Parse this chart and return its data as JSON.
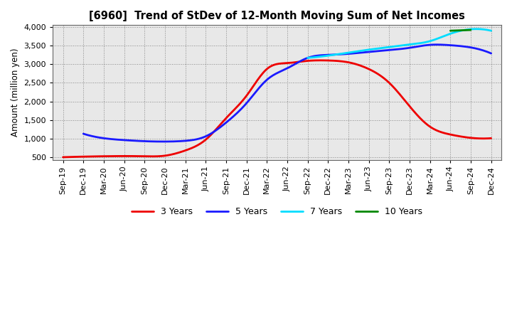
{
  "title": "[6960]  Trend of StDev of 12-Month Moving Sum of Net Incomes",
  "ylabel": "Amount (million yen)",
  "background_color": "#ffffff",
  "plot_bg_color": "#e8e8e8",
  "grid_color": "#aaaaaa",
  "ylim": [
    430,
    4050
  ],
  "yticks": [
    500,
    1000,
    1500,
    2000,
    2500,
    3000,
    3500,
    4000
  ],
  "lines": {
    "3 Years": {
      "color": "#ee0000",
      "lw": 2.0,
      "data": [
        500,
        515,
        525,
        530,
        525,
        540,
        680,
        970,
        1550,
        2150,
        2870,
        3030,
        3090,
        3100,
        3050,
        2870,
        2500,
        1870,
        1320,
        1110,
        1020,
        1010
      ]
    },
    "5 Years": {
      "color": "#1a1aff",
      "lw": 2.0,
      "data": [
        null,
        1130,
        1010,
        960,
        930,
        920,
        940,
        1060,
        1430,
        1950,
        2580,
        2890,
        3170,
        3250,
        3280,
        3330,
        3380,
        3440,
        3520,
        3510,
        3450,
        3290
      ]
    },
    "7 Years": {
      "color": "#00ddff",
      "lw": 2.0,
      "data": [
        null,
        null,
        null,
        null,
        null,
        null,
        null,
        null,
        null,
        null,
        null,
        null,
        3170,
        3230,
        3310,
        3390,
        3460,
        3530,
        3620,
        3820,
        3940,
        3900
      ]
    },
    "10 Years": {
      "color": "#008800",
      "lw": 2.0,
      "data": [
        null,
        null,
        null,
        null,
        null,
        null,
        null,
        null,
        null,
        null,
        null,
        null,
        null,
        null,
        null,
        null,
        null,
        null,
        null,
        3900,
        3920,
        null
      ]
    }
  },
  "xtick_labels": [
    "Sep-19",
    "Dec-19",
    "Mar-20",
    "Jun-20",
    "Sep-20",
    "Dec-20",
    "Mar-21",
    "Jun-21",
    "Sep-21",
    "Dec-21",
    "Mar-22",
    "Jun-22",
    "Sep-22",
    "Dec-22",
    "Mar-23",
    "Jun-23",
    "Sep-23",
    "Dec-23",
    "Mar-24",
    "Jun-24",
    "Sep-24",
    "Dec-24"
  ]
}
